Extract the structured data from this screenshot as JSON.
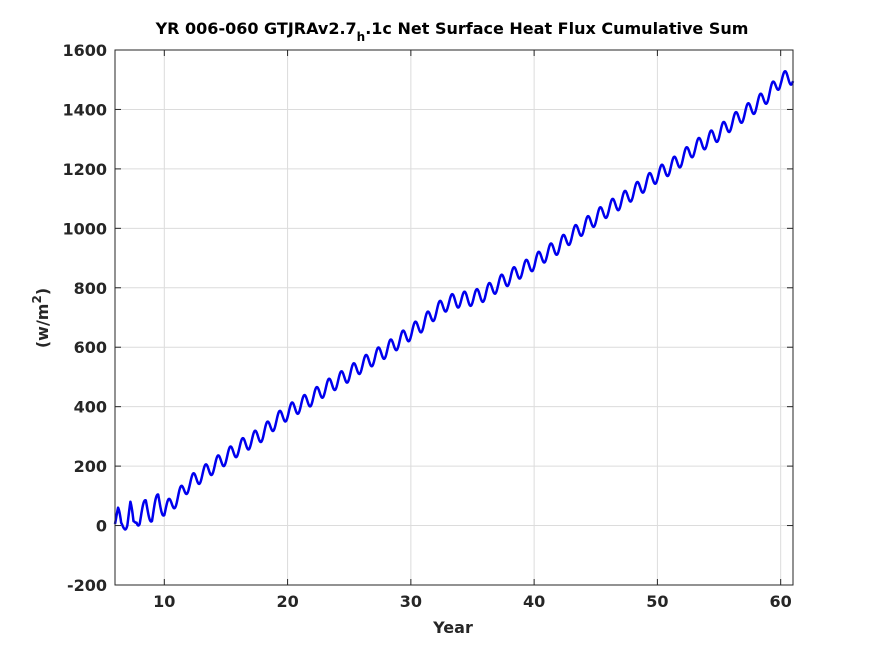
{
  "chart_data": {
    "type": "line",
    "title_prefix": "YR 006-060 GTJRAv2.7",
    "title_subscript": "h",
    "title_suffix": ".1c Net Surface Heat Flux  Cumulative Sum",
    "xlabel": "Year",
    "ylabel_base": "(w/m",
    "ylabel_sup": "2",
    "ylabel_close": ")",
    "xlim": [
      6,
      61
    ],
    "ylim": [
      -200,
      1600
    ],
    "xticks": [
      10,
      20,
      30,
      40,
      50,
      60
    ],
    "xtick_labels": [
      "10",
      "20",
      "30",
      "40",
      "50",
      "60"
    ],
    "yticks": [
      -200,
      0,
      200,
      400,
      600,
      800,
      1000,
      1200,
      1400,
      1600
    ],
    "ytick_labels": [
      "-200",
      "0",
      "200",
      "400",
      "600",
      "800",
      "1000",
      "1200",
      "1400",
      "1600"
    ],
    "grid": true,
    "line_color": "#0000ee",
    "series": [
      {
        "x": [
          6.0,
          6.25,
          6.5,
          6.75,
          7.0,
          7.25,
          7.5,
          7.75,
          8.0,
          8.5,
          9.0,
          9.5,
          10.0,
          11.0,
          12.0,
          13.0,
          14.0,
          15.0,
          16.0,
          17.0,
          18.0,
          19.0,
          20.0,
          21.0,
          22.0,
          23.0,
          24.0,
          25.0,
          26.0,
          27.0,
          28.0,
          29.0,
          30.0,
          31.0,
          32.0,
          33.0,
          34.0,
          35.0,
          36.0,
          37.0,
          38.0,
          39.0,
          40.0,
          41.0,
          42.0,
          43.0,
          44.0,
          45.0,
          46.0,
          47.0,
          48.0,
          49.0,
          50.0,
          51.0,
          52.0,
          53.0,
          54.0,
          55.0,
          56.0,
          57.0,
          58.0,
          59.0,
          60.0,
          61.0
        ],
        "y": [
          20,
          40,
          -5,
          10,
          15,
          60,
          0,
          30,
          20,
          70,
          30,
          90,
          50,
          90,
          140,
          170,
          200,
          230,
          260,
          285,
          310,
          350,
          380,
          405,
          430,
          460,
          485,
          510,
          540,
          565,
          590,
          620,
          650,
          680,
          720,
          750,
          760,
          765,
          780,
          810,
          835,
          860,
          885,
          915,
          940,
          975,
          1005,
          1035,
          1065,
          1090,
          1120,
          1150,
          1180,
          1205,
          1235,
          1270,
          1295,
          1320,
          1355,
          1385,
          1415,
          1450,
          1500,
          1510
        ]
      }
    ],
    "seasonal_amplitude": 25
  }
}
